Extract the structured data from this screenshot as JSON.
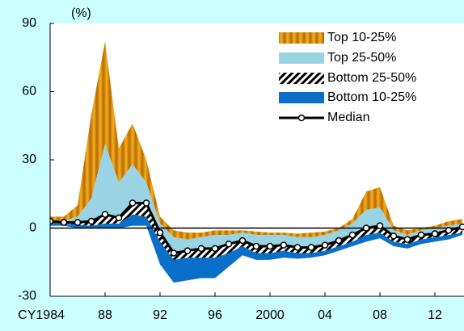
{
  "chart_data": {
    "type": "percentile-band",
    "y_label": "(%)",
    "x": [
      1984,
      1985,
      1986,
      1987,
      1988,
      1989,
      1990,
      1991,
      1992,
      1993,
      1994,
      1995,
      1996,
      1997,
      1998,
      1999,
      2000,
      2001,
      2002,
      2003,
      2004,
      2005,
      2006,
      2007,
      2008,
      2009,
      2010,
      2011,
      2012,
      2013,
      2014
    ],
    "xlim": [
      1984,
      2014
    ],
    "xticks": [
      {
        "value": 1984,
        "label": "CY1984"
      },
      {
        "value": 1988,
        "label": "88"
      },
      {
        "value": 1992,
        "label": "92"
      },
      {
        "value": 1996,
        "label": "96"
      },
      2000,
      {
        "value": 2004,
        "label": "04"
      },
      {
        "value": 2008,
        "label": "08"
      },
      {
        "value": 2012,
        "label": "12"
      }
    ],
    "ylim": [
      -30,
      90
    ],
    "yticks": [
      -30,
      0,
      30,
      60,
      90
    ],
    "series": [
      {
        "name": "Top 10-25%",
        "color": "#e89a10",
        "values": [
          5,
          5,
          10,
          50,
          82,
          35,
          46,
          30,
          5,
          -1,
          -2,
          -2,
          -1,
          -1,
          -1,
          -1.5,
          -2,
          -2,
          -2.5,
          -2,
          -1.5,
          0,
          4,
          16,
          18,
          1,
          -1,
          0,
          1,
          3,
          4
        ]
      },
      {
        "name": "Top 25-50%",
        "color": "#99d3e4",
        "values": [
          3,
          3,
          5,
          13,
          37,
          20,
          28,
          20,
          2,
          -4,
          -5,
          -4,
          -3,
          -3,
          -2,
          -3,
          -3,
          -3,
          -4,
          -4,
          -3,
          -1,
          2,
          8,
          9,
          -1,
          -3,
          -1,
          0,
          1,
          2
        ]
      },
      {
        "name": "Bottom 25-50%",
        "color": "#000000",
        "values": [
          2.5,
          2,
          1.5,
          1,
          2,
          2,
          6,
          5,
          -6,
          -14,
          -13,
          -13,
          -13,
          -11,
          -8,
          -11,
          -11,
          -10,
          -11,
          -11,
          -10,
          -8,
          -6,
          -3,
          -2,
          -6,
          -7,
          -5,
          -4,
          -3,
          -2
        ]
      },
      {
        "name": "Bottom 10-25%",
        "color": "#0a6fc8",
        "values": [
          1,
          1,
          0,
          0,
          0,
          0,
          1,
          1,
          -16,
          -24,
          -23,
          -22,
          -22,
          -17,
          -12,
          -14,
          -14,
          -13,
          -13.5,
          -13,
          -12,
          -10,
          -8,
          -6,
          -4.5,
          -8,
          -9,
          -7,
          -6,
          -5,
          -3
        ]
      },
      {
        "name": "Median",
        "color": "#000000",
        "values": [
          3,
          2.5,
          2.5,
          3,
          6,
          4.5,
          11,
          11,
          -2,
          -11,
          -10,
          -9,
          -9,
          -7,
          -5.5,
          -8,
          -8,
          -7.5,
          -8.5,
          -8.5,
          -7.5,
          -5.5,
          -3,
          0,
          1,
          -3.5,
          -5,
          -3,
          -2.5,
          -1,
          0.5
        ]
      }
    ]
  }
}
